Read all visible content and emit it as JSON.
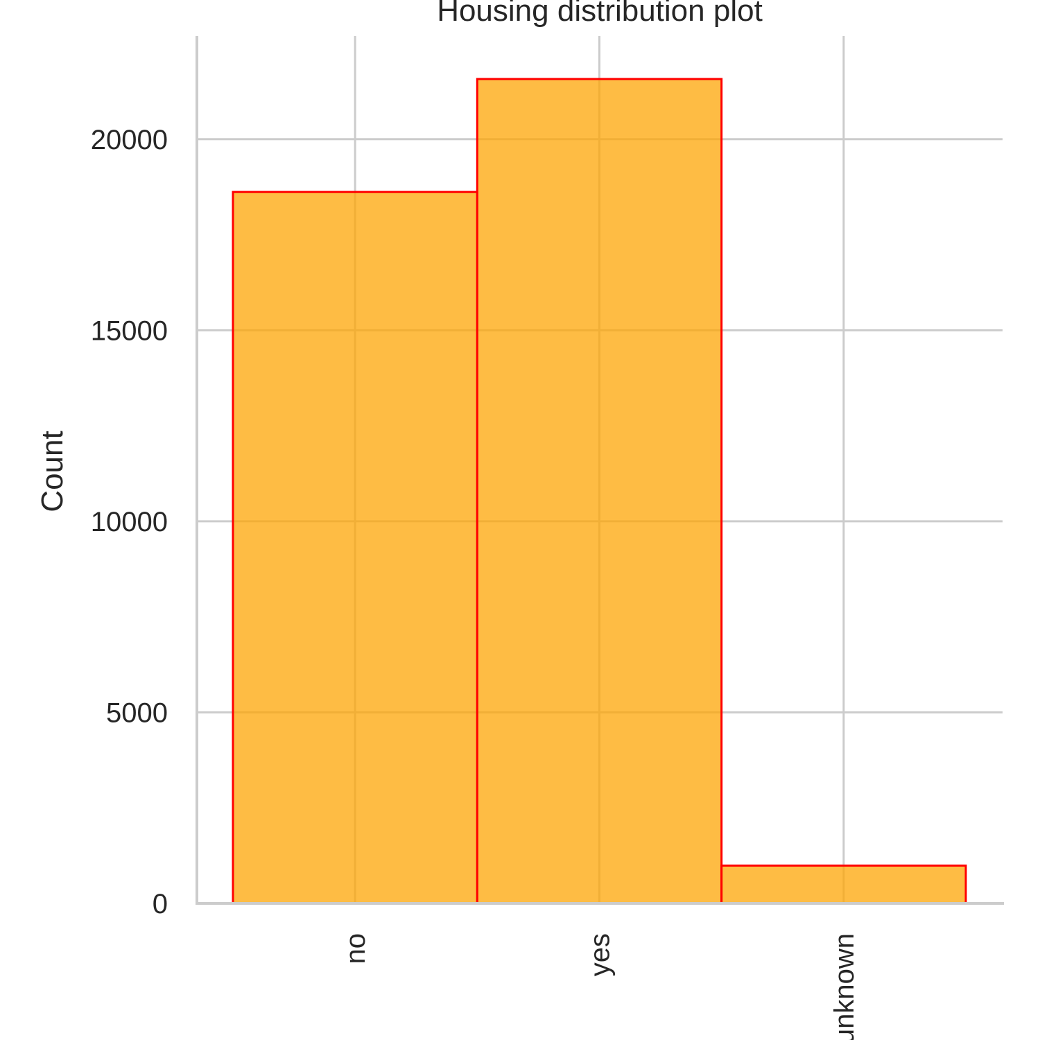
{
  "chart_data": {
    "type": "bar",
    "title": "Housing distribution plot",
    "xlabel": "",
    "ylabel": "Count",
    "categories": [
      "no",
      "yes",
      "unknown"
    ],
    "values": [
      18622,
      21576,
      990
    ],
    "ylim": [
      0,
      22700
    ],
    "yticks": [
      0,
      5000,
      10000,
      15000,
      20000
    ],
    "ytick_labels": [
      "0",
      "5000",
      "10000",
      "15000",
      "20000"
    ],
    "grid": true,
    "x_tick_rotation": "vertical",
    "colors": {
      "bar_fill": "#fea506",
      "bar_edge": "#ff0000",
      "grid": "#cccccc"
    }
  }
}
